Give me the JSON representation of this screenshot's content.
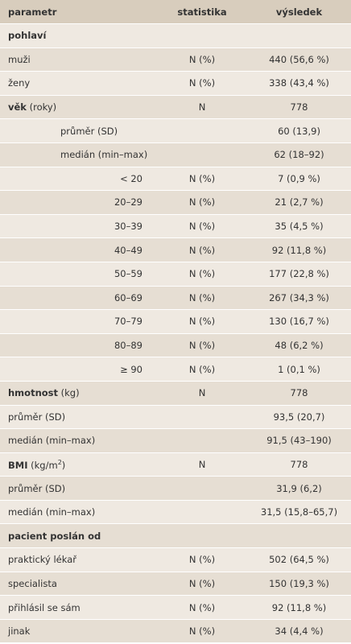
{
  "table": {
    "header": [
      "parametr",
      "statistika",
      "výsledek"
    ],
    "rows": [
      {
        "label": {
          "bold": "pohlaví"
        }
      },
      {
        "label": "muži",
        "statistic": "N (%)",
        "result": "440 (56,6 %)"
      },
      {
        "label": "ženy",
        "statistic": "N (%)",
        "result": "338 (43,4 %)"
      },
      {
        "label": {
          "bold": "věk",
          "normal": "(roky)"
        },
        "statistic": "N",
        "result": "778"
      },
      {
        "label": "průměr (SD)",
        "align": "indent",
        "result": "60 (13,9)"
      },
      {
        "label": "medián (min–max)",
        "align": "indent",
        "result": "62 (18–92)"
      },
      {
        "label": "< 20",
        "align": "right",
        "statistic": "N (%)",
        "result": "7 (0,9 %)"
      },
      {
        "label": "20–29",
        "align": "right",
        "statistic": "N (%)",
        "result": "21 (2,7 %)"
      },
      {
        "label": "30–39",
        "align": "right",
        "statistic": "N (%)",
        "result": "35 (4,5 %)"
      },
      {
        "label": "40–49",
        "align": "right",
        "statistic": "N (%)",
        "result": "92 (11,8 %)"
      },
      {
        "label": "50–59",
        "align": "right",
        "statistic": "N (%)",
        "result": "177 (22,8 %)"
      },
      {
        "label": "60–69",
        "align": "right",
        "statistic": "N (%)",
        "result": "267 (34,3 %)"
      },
      {
        "label": "70–79",
        "align": "right",
        "statistic": "N (%)",
        "result": "130 (16,7 %)"
      },
      {
        "label": "80–89",
        "align": "right",
        "statistic": "N (%)",
        "result": "48 (6,2 %)"
      },
      {
        "label": "≥ 90",
        "align": "right",
        "statistic": "N (%)",
        "result": "1 (0,1 %)"
      },
      {
        "label": {
          "bold": "hmotnost",
          "normal": "(kg)"
        },
        "statistic": "N",
        "result": "778"
      },
      {
        "label": "průměr (SD)",
        "result": "93,5 (20,7)"
      },
      {
        "label": "medián (min–max)",
        "result": "91,5 (43–190)"
      },
      {
        "label": {
          "bold": "BMI",
          "normal": "(kg/m",
          "sup": "2",
          "end": ")"
        },
        "statistic": "N",
        "result": "778"
      },
      {
        "label": "průměr (SD)",
        "result": "31,9 (6,2)"
      },
      {
        "label": "medián (min–max)",
        "result": "31,5 (15,8–65,7)"
      },
      {
        "label": {
          "bold": "pacient poslán od"
        }
      },
      {
        "label": "praktický lékař",
        "statistic": "N (%)",
        "result": "502 (64,5 %)"
      },
      {
        "label": "specialista",
        "statistic": "N (%)",
        "result": "150 (19,3 %)"
      },
      {
        "label": "přihlásil se sám",
        "statistic": "N (%)",
        "result": "92 (11,8 %)"
      },
      {
        "label": "jinak",
        "statistic": "N (%)",
        "result": "34 (4,4 %)"
      }
    ]
  }
}
